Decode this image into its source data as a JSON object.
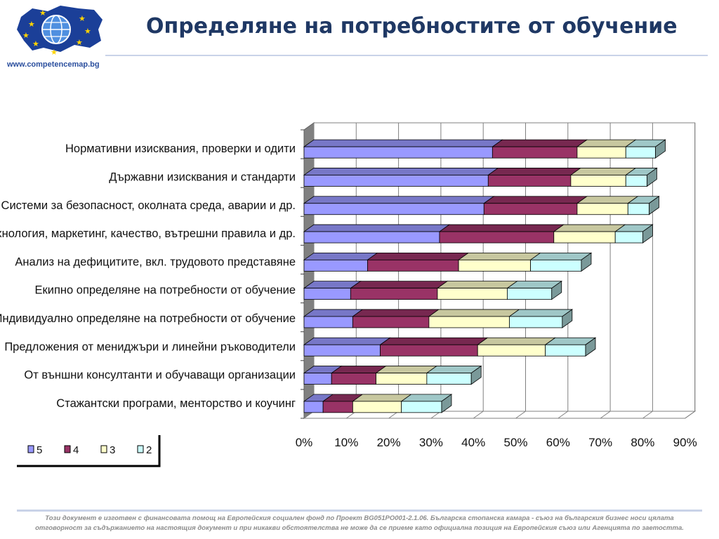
{
  "header": {
    "title": "Определяне на потребностите от обучение",
    "site_url": "www.competencemap.bg"
  },
  "chart_data": {
    "type": "bar",
    "orientation": "horizontal",
    "stacked": true,
    "style": "3d",
    "categories": [
      "Нормативни изисквания, проверки и одити",
      "Държавни изисквания и стандарти",
      "Системи за безопасност, околната среда, аварии и др.",
      "Технология, маркетинг, качество, вътрешни правила и др.",
      "Анализ на дефицитите, вкл. трудовото представяне",
      "Екипно определяне на потребности от обучение",
      "Индивидуално определяне на потребности от обучение",
      "Предложения от мениджъри и линейни ръководители",
      "От външни консултанти и обучаващи организации",
      "Стажантски програми, менторство и коучинг"
    ],
    "series": [
      {
        "name": "5",
        "color": "#9999ff",
        "values": [
          44.5,
          43.5,
          42.5,
          32.0,
          15.0,
          11.0,
          11.5,
          18.0,
          6.5,
          4.5
        ]
      },
      {
        "name": "4",
        "color": "#993366",
        "values": [
          20.0,
          19.5,
          22.0,
          27.0,
          21.5,
          20.5,
          18.0,
          23.0,
          10.5,
          7.0
        ]
      },
      {
        "name": "3",
        "color": "#ffffcc",
        "values": [
          11.5,
          13.0,
          12.0,
          14.5,
          17.0,
          16.5,
          19.0,
          16.0,
          12.0,
          11.5
        ]
      },
      {
        "name": "2",
        "color": "#ccffff",
        "values": [
          7.0,
          5.0,
          5.0,
          6.5,
          12.0,
          10.5,
          12.5,
          9.5,
          10.5,
          9.5
        ]
      }
    ],
    "xlim": [
      0,
      90
    ],
    "xticks": [
      "0%",
      "10%",
      "20%",
      "30%",
      "40%",
      "50%",
      "60%",
      "70%",
      "80%",
      "90%"
    ],
    "xgrid": true,
    "legend_position": "bottom-left"
  },
  "footer": {
    "line1": "Този документ е изготвен с финансовата помощ на Европейския социален фонд по Проект BG051PO001-2.1.06. Българска стопанска камара - съюз на българския бизнес носи цялата",
    "line2": "отговорност за съдържанието на настоящия документ и при никакви обстоятелства не може да се приеме като официална позиция на Европейския съюз или Агенцията по заетостта."
  }
}
